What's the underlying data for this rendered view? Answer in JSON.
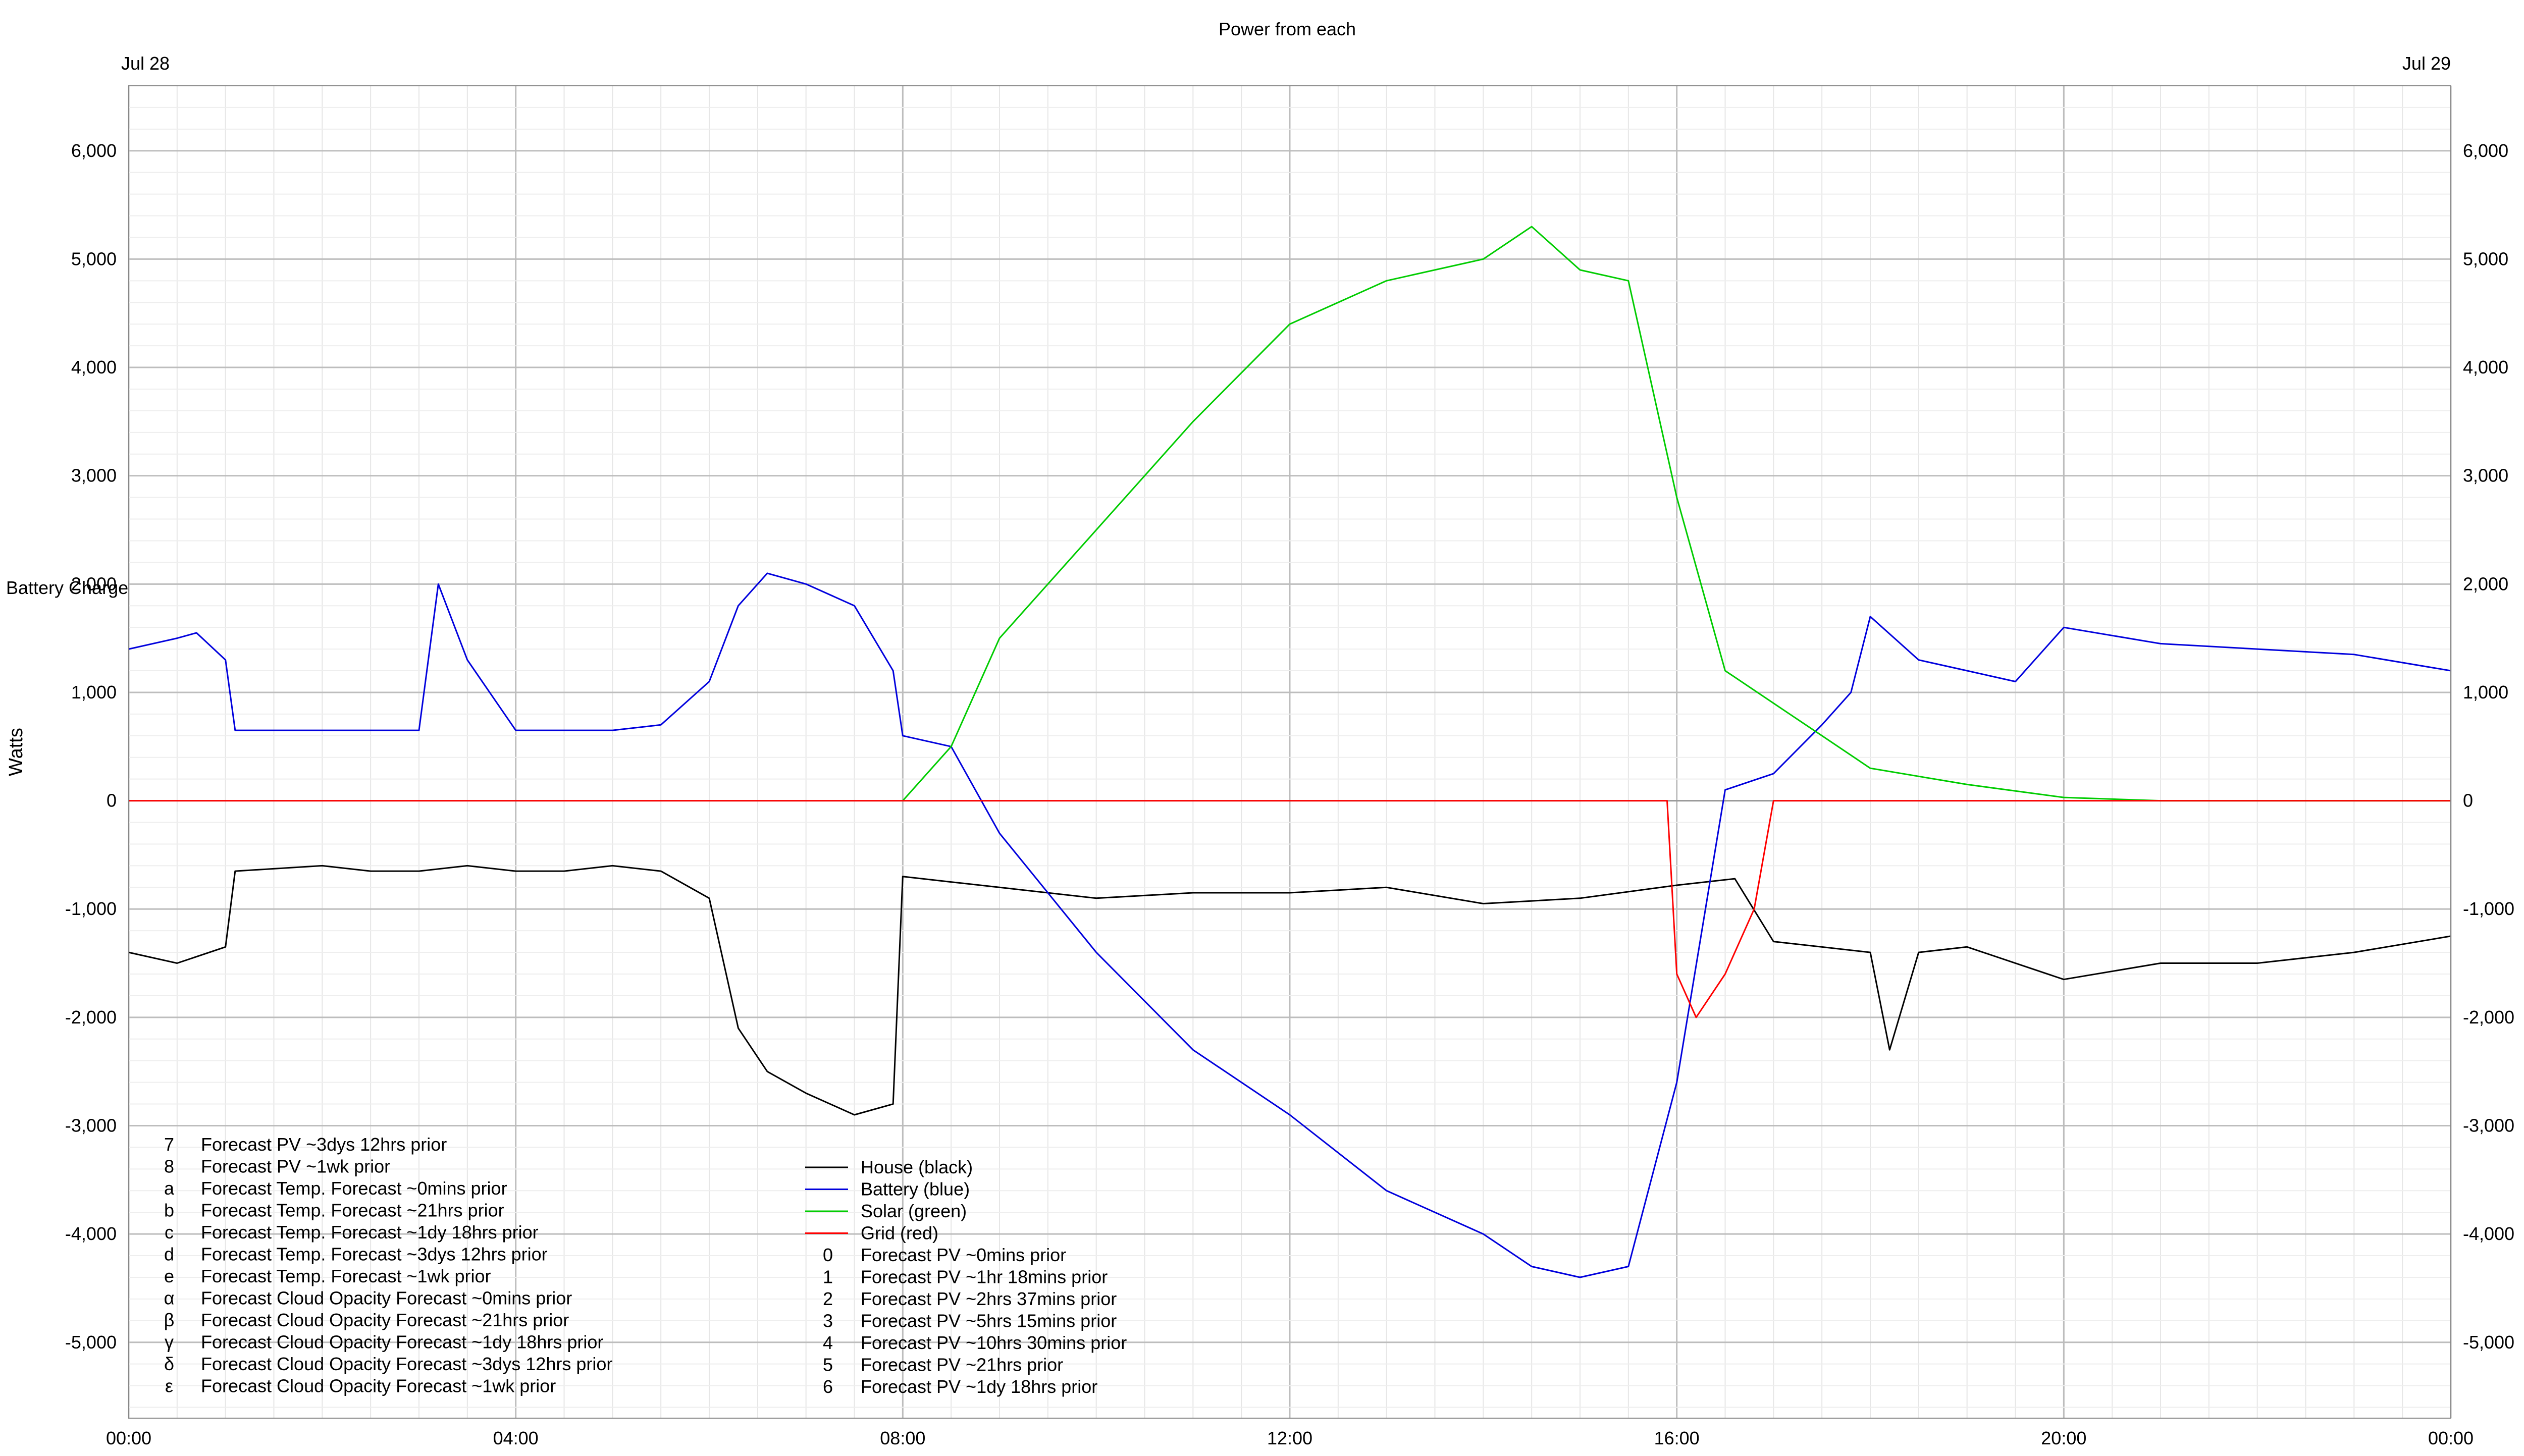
{
  "chart_data": {
    "type": "line",
    "title": "Power from each",
    "ylabel_left": "Watts",
    "ylabel_right": "Watts",
    "y2label": "Battery Charge",
    "date_start": "Jul 28",
    "date_end": "Jul 29",
    "x_ticks": [
      "00:00",
      "04:00",
      "08:00",
      "12:00",
      "16:00",
      "20:00",
      "00:00"
    ],
    "x_range_hours": [
      0,
      24
    ],
    "y_ticks": [
      "-5,000",
      "-4,000",
      "-3,000",
      "-2,000",
      "-1,000",
      "0",
      "1,000",
      "2,000",
      "3,000",
      "4,000",
      "5,000",
      "6,000"
    ],
    "y_tick_values": [
      -5000,
      -4000,
      -3000,
      -2000,
      -1000,
      0,
      1000,
      2000,
      3000,
      4000,
      5000,
      6000
    ],
    "ylim": [
      -5700,
      6600
    ],
    "grid": true,
    "series": [
      {
        "name": "House (black)",
        "color": "#000000",
        "x": [
          0,
          0.5,
          1,
          1.1,
          2,
          2.5,
          3,
          3.5,
          4,
          4.5,
          5,
          5.5,
          6,
          6.3,
          6.6,
          7,
          7.5,
          7.9,
          8,
          8.5,
          9,
          10,
          11,
          12,
          13,
          14,
          15,
          16,
          16.6,
          17,
          18,
          18.2,
          18.5,
          19,
          20,
          21,
          22,
          23,
          24
        ],
        "y": [
          -1400,
          -1500,
          -1350,
          -650,
          -600,
          -650,
          -650,
          -600,
          -650,
          -650,
          -600,
          -650,
          -900,
          -2100,
          -2500,
          -2700,
          -2900,
          -2800,
          -700,
          -750,
          -800,
          -900,
          -850,
          -850,
          -800,
          -950,
          -900,
          -780,
          -720,
          -1300,
          -1400,
          -2300,
          -1400,
          -1350,
          -1650,
          -1500,
          -1500,
          -1400,
          -1250
        ]
      },
      {
        "name": "Battery (blue)",
        "color": "#0000dd",
        "x": [
          0,
          0.5,
          0.7,
          1,
          1.1,
          2,
          3,
          3.2,
          3.5,
          4,
          5,
          5.5,
          6,
          6.3,
          6.6,
          7,
          7.5,
          7.9,
          8,
          8.5,
          9,
          10,
          11,
          12,
          13,
          14,
          14.5,
          15,
          15.5,
          16,
          16.5,
          17,
          17.5,
          17.8,
          18,
          18.5,
          19,
          19.5,
          20,
          21,
          22,
          23,
          24
        ],
        "y": [
          1400,
          1500,
          1550,
          1300,
          650,
          650,
          650,
          2000,
          1300,
          650,
          650,
          700,
          1100,
          1800,
          2100,
          2000,
          1800,
          1200,
          600,
          500,
          -300,
          -1400,
          -2300,
          -2900,
          -3600,
          -4000,
          -4300,
          -4400,
          -4300,
          -2600,
          100,
          250,
          700,
          1000,
          1700,
          1300,
          1200,
          1100,
          1600,
          1450,
          1400,
          1350,
          1200
        ]
      },
      {
        "name": "Solar (green)",
        "color": "#00cc00",
        "x": [
          8,
          8.5,
          9,
          10,
          11,
          12,
          13,
          14,
          14.5,
          15,
          15.5,
          16,
          16.5,
          17,
          17.5,
          18,
          19,
          20,
          21,
          22,
          23,
          24
        ],
        "y": [
          0,
          500,
          1500,
          2500,
          3500,
          4400,
          4800,
          5000,
          5300,
          4900,
          4800,
          2800,
          1200,
          900,
          600,
          300,
          150,
          30,
          0,
          0,
          0,
          0
        ]
      },
      {
        "name": "Grid (red)",
        "color": "#ff0000",
        "x": [
          0,
          1,
          2,
          3,
          4,
          5,
          6,
          7,
          8,
          9,
          10,
          11,
          12,
          13,
          14,
          15,
          15.9,
          16,
          16.2,
          16.5,
          16.8,
          17,
          18,
          19,
          20,
          21,
          22,
          23,
          24
        ],
        "y": [
          0,
          0,
          0,
          0,
          0,
          0,
          0,
          0,
          0,
          0,
          0,
          0,
          0,
          0,
          0,
          0,
          0,
          -1600,
          -2000,
          -1600,
          -1000,
          0,
          0,
          0,
          0,
          0,
          0,
          0,
          0
        ]
      }
    ],
    "legend_left": [
      {
        "mark": "7",
        "label": "Forecast PV ~3dys 12hrs prior"
      },
      {
        "mark": "8",
        "label": "Forecast PV ~1wk prior"
      },
      {
        "mark": "a",
        "label": "Forecast Temp. Forecast ~0mins prior"
      },
      {
        "mark": "b",
        "label": "Forecast Temp. Forecast ~21hrs prior"
      },
      {
        "mark": "c",
        "label": "Forecast Temp. Forecast ~1dy 18hrs prior"
      },
      {
        "mark": "d",
        "label": "Forecast Temp. Forecast ~3dys 12hrs prior"
      },
      {
        "mark": "e",
        "label": "Forecast Temp. Forecast ~1wk prior"
      },
      {
        "mark": "α",
        "label": "Forecast Cloud Opacity Forecast ~0mins prior"
      },
      {
        "mark": "β",
        "label": "Forecast Cloud Opacity Forecast ~21hrs prior"
      },
      {
        "mark": "γ",
        "label": "Forecast Cloud Opacity Forecast ~1dy 18hrs prior"
      },
      {
        "mark": "δ",
        "label": "Forecast Cloud Opacity Forecast ~3dys 12hrs prior"
      },
      {
        "mark": "ε",
        "label": "Forecast Cloud Opacity Forecast ~1wk prior"
      }
    ],
    "legend_right": [
      {
        "mark": "",
        "label": "House (black)",
        "color": "#000000"
      },
      {
        "mark": "",
        "label": "Battery (blue)",
        "color": "#0000dd"
      },
      {
        "mark": "",
        "label": "Solar (green)",
        "color": "#00cc00"
      },
      {
        "mark": "",
        "label": "Grid (red)",
        "color": "#ff0000"
      },
      {
        "mark": "0",
        "label": "Forecast PV ~0mins prior"
      },
      {
        "mark": "1",
        "label": "Forecast PV ~1hr 18mins prior"
      },
      {
        "mark": "2",
        "label": "Forecast PV ~2hrs 37mins prior"
      },
      {
        "mark": "3",
        "label": "Forecast PV ~5hrs 15mins prior"
      },
      {
        "mark": "4",
        "label": "Forecast PV ~10hrs 30mins prior"
      },
      {
        "mark": "5",
        "label": "Forecast PV ~21hrs prior"
      },
      {
        "mark": "6",
        "label": "Forecast PV ~1dy 18hrs prior"
      }
    ]
  }
}
